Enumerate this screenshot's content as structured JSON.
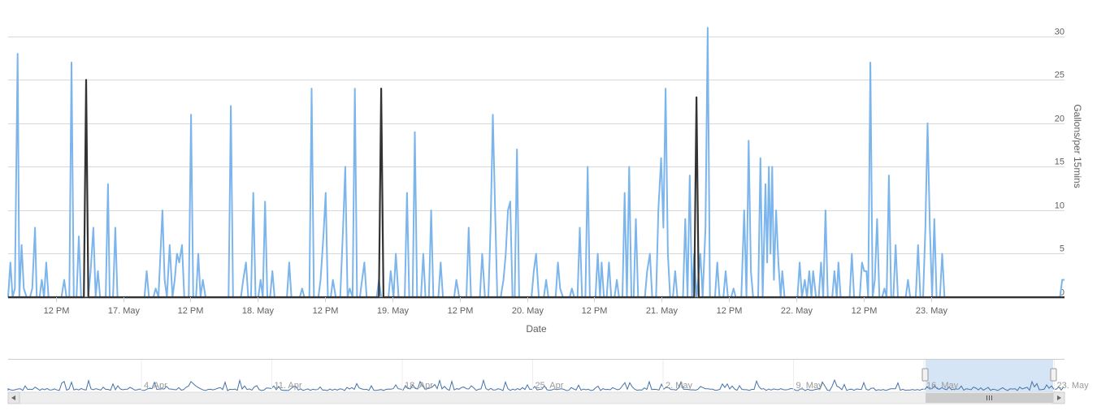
{
  "chart_data": {
    "type": "line",
    "xlabel": "Date",
    "ylabel": "Gallons/per 15mins",
    "ylim": [
      0,
      30
    ],
    "yticks": [
      "0",
      "5",
      "10",
      "15",
      "20",
      "25",
      "30"
    ],
    "xtick_labels": [
      "12 PM",
      "17. May",
      "12 PM",
      "18. May",
      "12 PM",
      "19. May",
      "12 PM",
      "20. May",
      "12 PM",
      "21. May",
      "12 PM",
      "22. May",
      "12 PM",
      "23. May"
    ],
    "xtick_hours": [
      12,
      24,
      36,
      48,
      60,
      72,
      84,
      96,
      108,
      120,
      132,
      144,
      156,
      168
    ],
    "x_range_hours": [
      3.5,
      191.8
    ],
    "x_origin": "16. May 00:00",
    "grid": true,
    "series": [
      {
        "color": "#7cb5ec",
        "points": [
          [
            3.5,
            0
          ],
          [
            3.9,
            4
          ],
          [
            4.3,
            0
          ],
          [
            4.7,
            1
          ],
          [
            5.2,
            28
          ],
          [
            5.5,
            0
          ],
          [
            5.9,
            6
          ],
          [
            6.3,
            1
          ],
          [
            6.8,
            0
          ],
          [
            7.4,
            0
          ],
          [
            7.8,
            1
          ],
          [
            8.3,
            8
          ],
          [
            8.6,
            0
          ],
          [
            9.1,
            0
          ],
          [
            9.5,
            2
          ],
          [
            9.9,
            0
          ],
          [
            10.3,
            4
          ],
          [
            10.7,
            0
          ],
          [
            13.0,
            0
          ],
          [
            13.5,
            2
          ],
          [
            13.9,
            0
          ],
          [
            14.4,
            0
          ],
          [
            14.8,
            27
          ],
          [
            15.2,
            0
          ],
          [
            15.7,
            0
          ],
          [
            16.1,
            7
          ],
          [
            16.5,
            0
          ],
          [
            17.4,
            0
          ],
          [
            17.8,
            0
          ],
          [
            18.2,
            3
          ],
          [
            18.7,
            8
          ],
          [
            19.1,
            0
          ],
          [
            19.5,
            3
          ],
          [
            19.9,
            0
          ],
          [
            20.9,
            0
          ],
          [
            21.3,
            13
          ],
          [
            21.6,
            0
          ],
          [
            22.2,
            0
          ],
          [
            22.6,
            8
          ],
          [
            23.0,
            0
          ],
          [
            27.8,
            0
          ],
          [
            28.2,
            3
          ],
          [
            28.6,
            0
          ],
          [
            29.4,
            0
          ],
          [
            29.8,
            1
          ],
          [
            30.3,
            0
          ],
          [
            31.0,
            10
          ],
          [
            31.4,
            2
          ],
          [
            31.8,
            0
          ],
          [
            32.3,
            6
          ],
          [
            32.8,
            0
          ],
          [
            33.2,
            2
          ],
          [
            33.6,
            5
          ],
          [
            34.0,
            4
          ],
          [
            34.5,
            6
          ],
          [
            34.9,
            0
          ],
          [
            35.7,
            0
          ],
          [
            36.1,
            21
          ],
          [
            36.5,
            0
          ],
          [
            37.0,
            0
          ],
          [
            37.4,
            5
          ],
          [
            37.8,
            0
          ],
          [
            38.2,
            2
          ],
          [
            38.7,
            0
          ],
          [
            42.4,
            0
          ],
          [
            42.8,
            0
          ],
          [
            43.2,
            22
          ],
          [
            43.6,
            0
          ],
          [
            45.0,
            0
          ],
          [
            45.4,
            2
          ],
          [
            45.9,
            4
          ],
          [
            46.3,
            0
          ],
          [
            46.8,
            0
          ],
          [
            47.2,
            12
          ],
          [
            47.6,
            0
          ],
          [
            48.1,
            0
          ],
          [
            48.5,
            2
          ],
          [
            48.9,
            0
          ],
          [
            49.3,
            11
          ],
          [
            49.7,
            0
          ],
          [
            50.2,
            0
          ],
          [
            50.6,
            3
          ],
          [
            51.0,
            0
          ],
          [
            53.2,
            0
          ],
          [
            53.6,
            4
          ],
          [
            54.0,
            0
          ],
          [
            55.5,
            0
          ],
          [
            55.9,
            1
          ],
          [
            56.3,
            0
          ],
          [
            57.2,
            0
          ],
          [
            57.6,
            24
          ],
          [
            58.0,
            0
          ],
          [
            58.8,
            0
          ],
          [
            59.2,
            2
          ],
          [
            59.7,
            7
          ],
          [
            60.1,
            12
          ],
          [
            60.5,
            0
          ],
          [
            61.0,
            0
          ],
          [
            61.4,
            2
          ],
          [
            61.9,
            0
          ],
          [
            62.7,
            0
          ],
          [
            63.2,
            8
          ],
          [
            63.6,
            15
          ],
          [
            64.0,
            0
          ],
          [
            64.4,
            1
          ],
          [
            64.9,
            0
          ],
          [
            65.3,
            24
          ],
          [
            65.7,
            0
          ],
          [
            66.2,
            0
          ],
          [
            66.6,
            2
          ],
          [
            67.0,
            4
          ],
          [
            67.4,
            0
          ],
          [
            69.2,
            0
          ],
          [
            69.6,
            2
          ],
          [
            70.0,
            0
          ],
          [
            71.3,
            0
          ],
          [
            71.7,
            3
          ],
          [
            72.2,
            0
          ],
          [
            72.6,
            5
          ],
          [
            73.1,
            0
          ],
          [
            74.2,
            0
          ],
          [
            74.6,
            12
          ],
          [
            75.0,
            0
          ],
          [
            75.6,
            0
          ],
          [
            76.0,
            19
          ],
          [
            76.4,
            0
          ],
          [
            77.1,
            0
          ],
          [
            77.5,
            5
          ],
          [
            77.9,
            0
          ],
          [
            78.5,
            0
          ],
          [
            78.9,
            10
          ],
          [
            79.3,
            0
          ],
          [
            80.2,
            0
          ],
          [
            80.6,
            4
          ],
          [
            81.0,
            0
          ],
          [
            83.0,
            0
          ],
          [
            83.4,
            2
          ],
          [
            83.9,
            0
          ],
          [
            85.2,
            0
          ],
          [
            85.6,
            8
          ],
          [
            86.0,
            0
          ],
          [
            87.2,
            0
          ],
          [
            87.6,
            0
          ],
          [
            88.0,
            5
          ],
          [
            88.5,
            0
          ],
          [
            89.1,
            0
          ],
          [
            89.5,
            8
          ],
          [
            89.9,
            21
          ],
          [
            90.3,
            10
          ],
          [
            90.7,
            0
          ],
          [
            91.3,
            0
          ],
          [
            91.8,
            2
          ],
          [
            92.2,
            5
          ],
          [
            92.6,
            10
          ],
          [
            93.0,
            11
          ],
          [
            93.4,
            0
          ],
          [
            93.8,
            0
          ],
          [
            94.2,
            17
          ],
          [
            94.6,
            0
          ],
          [
            96.8,
            0
          ],
          [
            97.2,
            3
          ],
          [
            97.6,
            5
          ],
          [
            98.1,
            0
          ],
          [
            99.0,
            0
          ],
          [
            99.4,
            2
          ],
          [
            99.8,
            0
          ],
          [
            101.1,
            0
          ],
          [
            101.5,
            4
          ],
          [
            101.9,
            1
          ],
          [
            102.4,
            0
          ],
          [
            103.6,
            0
          ],
          [
            104.0,
            1
          ],
          [
            104.4,
            0
          ],
          [
            105.0,
            0
          ],
          [
            105.4,
            8
          ],
          [
            105.8,
            0
          ],
          [
            106.4,
            0
          ],
          [
            106.8,
            15
          ],
          [
            107.2,
            0
          ],
          [
            108.2,
            0
          ],
          [
            108.6,
            5
          ],
          [
            109.0,
            0
          ],
          [
            109.3,
            4
          ],
          [
            109.7,
            0
          ],
          [
            110.2,
            0
          ],
          [
            110.6,
            4
          ],
          [
            111.0,
            0
          ],
          [
            111.6,
            0
          ],
          [
            112.0,
            2
          ],
          [
            112.4,
            0
          ],
          [
            113.0,
            0
          ],
          [
            113.4,
            12
          ],
          [
            113.8,
            0
          ],
          [
            114.2,
            15
          ],
          [
            114.6,
            0
          ],
          [
            115.0,
            0
          ],
          [
            115.4,
            9
          ],
          [
            115.8,
            0
          ],
          [
            116.6,
            0
          ],
          [
            117.0,
            0
          ],
          [
            117.4,
            3
          ],
          [
            117.9,
            5
          ],
          [
            118.3,
            0
          ],
          [
            119.0,
            0
          ],
          [
            119.4,
            10
          ],
          [
            119.9,
            16
          ],
          [
            120.3,
            8
          ],
          [
            120.7,
            24
          ],
          [
            121.1,
            5
          ],
          [
            121.5,
            0
          ],
          [
            122.0,
            0
          ],
          [
            122.4,
            3
          ],
          [
            122.8,
            0
          ],
          [
            123.8,
            0
          ],
          [
            124.2,
            9
          ],
          [
            124.6,
            0
          ],
          [
            125.0,
            14
          ],
          [
            125.4,
            0
          ],
          [
            125.8,
            5
          ],
          [
            126.2,
            0
          ],
          [
            126.5,
            2
          ],
          [
            126.9,
            5
          ],
          [
            127.3,
            0
          ],
          [
            127.8,
            8
          ],
          [
            128.2,
            31
          ],
          [
            128.6,
            0
          ],
          [
            129.5,
            0
          ],
          [
            129.9,
            4
          ],
          [
            130.3,
            0
          ],
          [
            131.0,
            0
          ],
          [
            131.4,
            3
          ],
          [
            131.8,
            0
          ],
          [
            132.4,
            0
          ],
          [
            132.8,
            1
          ],
          [
            133.2,
            0
          ],
          [
            134.2,
            0
          ],
          [
            134.7,
            10
          ],
          [
            135.1,
            0
          ],
          [
            135.5,
            18
          ],
          [
            135.9,
            3
          ],
          [
            136.3,
            0
          ],
          [
            137.2,
            0
          ],
          [
            137.6,
            16
          ],
          [
            138.0,
            0
          ],
          [
            138.5,
            13
          ],
          [
            138.8,
            4
          ],
          [
            139.1,
            15
          ],
          [
            139.4,
            5
          ],
          [
            139.7,
            15
          ],
          [
            140.0,
            2
          ],
          [
            140.4,
            10
          ],
          [
            140.8,
            4
          ],
          [
            141.2,
            0
          ],
          [
            141.5,
            3
          ],
          [
            141.9,
            0
          ],
          [
            144.2,
            0
          ],
          [
            144.6,
            4
          ],
          [
            145.0,
            0
          ],
          [
            145.5,
            2
          ],
          [
            145.9,
            0
          ],
          [
            146.3,
            3
          ],
          [
            146.7,
            0
          ],
          [
            147.0,
            3
          ],
          [
            147.5,
            0
          ],
          [
            148.0,
            0
          ],
          [
            148.4,
            4
          ],
          [
            148.8,
            0
          ],
          [
            149.2,
            10
          ],
          [
            149.6,
            0
          ],
          [
            150.4,
            0
          ],
          [
            150.8,
            3
          ],
          [
            151.2,
            0
          ],
          [
            151.5,
            4
          ],
          [
            151.9,
            0
          ],
          [
            153.0,
            0
          ],
          [
            153.5,
            0
          ],
          [
            153.9,
            5
          ],
          [
            154.3,
            0
          ],
          [
            155.3,
            0
          ],
          [
            155.7,
            4
          ],
          [
            156.1,
            3
          ],
          [
            156.5,
            3
          ],
          [
            156.8,
            0
          ],
          [
            157.2,
            27
          ],
          [
            157.6,
            0
          ],
          [
            158.0,
            2
          ],
          [
            158.4,
            9
          ],
          [
            158.8,
            0
          ],
          [
            159.3,
            0
          ],
          [
            159.7,
            1
          ],
          [
            160.1,
            0
          ],
          [
            160.5,
            14
          ],
          [
            160.9,
            0
          ],
          [
            161.3,
            0
          ],
          [
            161.7,
            6
          ],
          [
            162.1,
            0
          ],
          [
            163.5,
            0
          ],
          [
            163.9,
            2
          ],
          [
            164.3,
            0
          ],
          [
            165.3,
            0
          ],
          [
            165.7,
            6
          ],
          [
            166.1,
            0
          ],
          [
            166.6,
            0
          ],
          [
            167.0,
            8
          ],
          [
            167.4,
            20
          ],
          [
            167.8,
            8
          ],
          [
            168.2,
            0
          ],
          [
            168.6,
            9
          ],
          [
            169.0,
            0
          ],
          [
            169.6,
            0
          ],
          [
            170.0,
            5
          ],
          [
            170.4,
            0
          ],
          [
            171.0,
            0
          ],
          [
            191.0,
            0
          ],
          [
            191.4,
            2
          ],
          [
            191.8,
            2
          ]
        ]
      },
      {
        "color": "#333333",
        "points": [
          [
            3.5,
            0
          ],
          [
            17.0,
            0
          ],
          [
            17.4,
            25
          ],
          [
            17.8,
            0
          ],
          [
            69.6,
            0
          ],
          [
            70.0,
            24
          ],
          [
            70.4,
            0
          ],
          [
            125.8,
            0
          ],
          [
            126.2,
            23
          ],
          [
            126.6,
            0
          ],
          [
            191.8,
            0
          ]
        ]
      }
    ],
    "navigator": {
      "labels": [
        "4. Apr",
        "11. Apr",
        "18. Apr",
        "25. Apr",
        "2. May",
        "9. May",
        "16. May",
        "23. May"
      ]
    }
  }
}
